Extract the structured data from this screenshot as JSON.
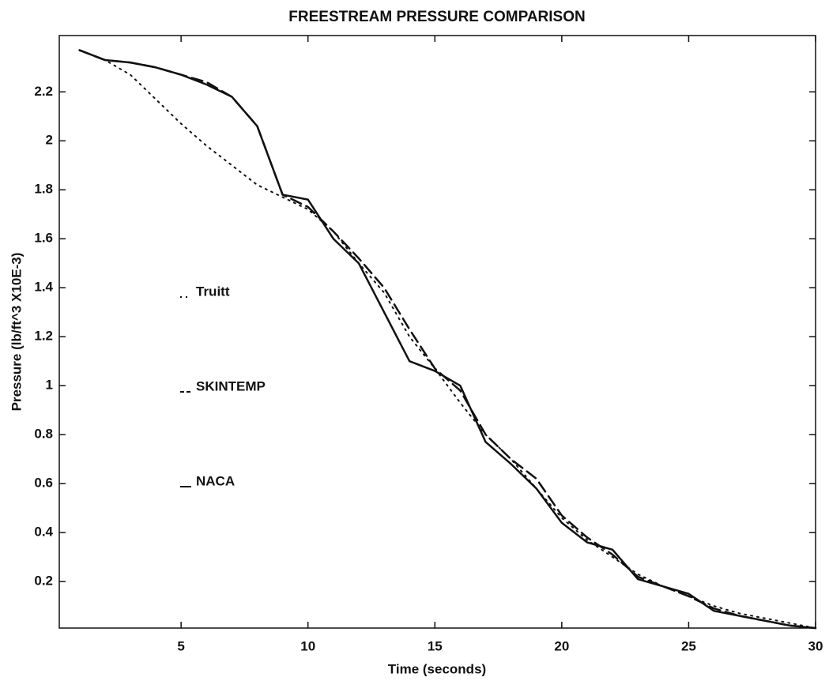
{
  "chart_data": {
    "type": "line",
    "title": "FREESTREAM PRESSURE COMPARISON",
    "x_label": "Time (seconds)",
    "y_label": "Pressure (lb/ft^3  X10E-3)",
    "x": [
      1,
      2,
      3,
      4,
      5,
      6,
      7,
      8,
      9,
      10,
      11,
      12,
      13,
      14,
      15,
      16,
      17,
      18,
      19,
      20,
      21,
      22,
      23,
      24,
      25,
      26,
      27,
      28,
      29,
      30
    ],
    "series": [
      {
        "name": "Truitt",
        "color": "#111111",
        "dash": "dotted",
        "values": [
          2.37,
          2.33,
          2.27,
          2.17,
          2.07,
          1.98,
          1.9,
          1.82,
          1.77,
          1.72,
          1.63,
          1.5,
          1.38,
          1.2,
          1.07,
          0.93,
          0.8,
          0.7,
          0.58,
          0.46,
          0.37,
          0.3,
          0.23,
          0.18,
          0.14,
          0.1,
          0.07,
          0.05,
          0.03,
          0.01
        ]
      },
      {
        "name": "SKINTEMP",
        "color": "#111111",
        "dash": "dashed",
        "values": [
          2.37,
          2.33,
          2.32,
          2.3,
          2.27,
          2.24,
          2.18,
          2.06,
          1.78,
          1.73,
          1.63,
          1.52,
          1.4,
          1.23,
          1.07,
          0.98,
          0.8,
          0.7,
          0.62,
          0.47,
          0.38,
          0.31,
          0.22,
          0.18,
          0.14,
          0.09,
          0.06,
          0.04,
          0.02,
          0.01
        ]
      },
      {
        "name": "NACA",
        "color": "#111111",
        "dash": "solid",
        "values": [
          2.37,
          2.33,
          2.32,
          2.3,
          2.27,
          2.23,
          2.18,
          2.06,
          1.78,
          1.76,
          1.6,
          1.5,
          1.3,
          1.1,
          1.06,
          1.0,
          0.77,
          0.68,
          0.58,
          0.44,
          0.36,
          0.33,
          0.21,
          0.18,
          0.15,
          0.08,
          0.06,
          0.04,
          0.02,
          0.01
        ]
      }
    ],
    "xlim": [
      0.2,
      30
    ],
    "ylim": [
      0.01,
      2.43
    ],
    "xticks": [
      5,
      10,
      15,
      20,
      25,
      30
    ],
    "yticks": [
      0.2,
      0.4,
      0.6,
      0.8,
      1,
      1.2,
      1.4,
      1.6,
      1.8,
      2,
      2.2
    ],
    "grid": false
  }
}
